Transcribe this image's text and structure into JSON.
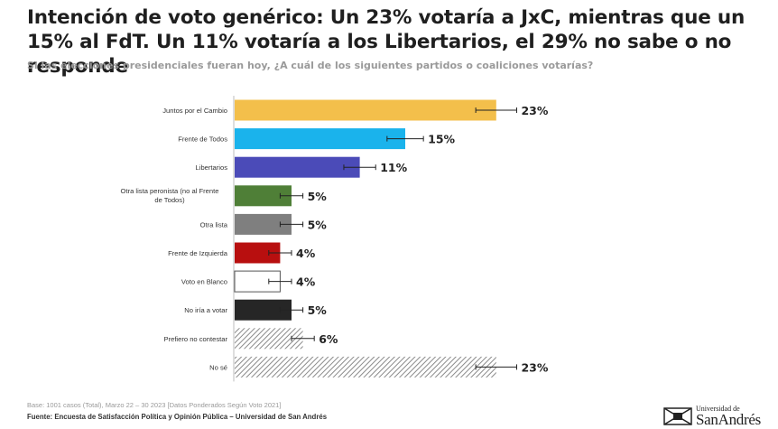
{
  "title": "Intención de voto genérico: Un 23% votaría a JxC, mientras que un 15% al FdT. Un 11% votaría a los Libertarios, el 29% no sabe o no responde",
  "subtitle": "Si las elecciones presidenciales fueran hoy, ¿A cuál de los siguientes partidos o coaliciones votarías?",
  "footnote": "Base: 1001 casos (Total), Marzo 22 – 30 2023 [Datos Ponderados Según Voto 2021]",
  "source": "Fuente: Encuesta de Satisfacción Política y Opinión Pública – Universidad de San Andrés",
  "logo": {
    "small_text": "Universidad de",
    "big_text": "SanAndrés"
  },
  "chart_data": {
    "type": "bar",
    "orientation": "horizontal",
    "categories": [
      "Juntos por el Cambio",
      "Frente de Todos",
      "Libertarios",
      "Otra lista peronista (no al Frente de Todos)",
      "Otra lista",
      "Frente de Izquierda",
      "Voto en Blanco",
      "No iría a votar",
      "Prefiero no contestar",
      "No sé"
    ],
    "values": [
      23,
      15,
      11,
      5,
      5,
      4,
      4,
      5,
      6,
      23
    ],
    "value_labels": [
      "23%",
      "15%",
      "11%",
      "5%",
      "5%",
      "4%",
      "4%",
      "5%",
      "6%",
      "23%"
    ],
    "error_margin": [
      1.8,
      1.6,
      1.4,
      1.0,
      1.0,
      1.0,
      1.0,
      1.0,
      1.0,
      1.8
    ],
    "colors": [
      "#f3bf4b",
      "#1ab3ec",
      "#4b4bb8",
      "#4f7f37",
      "#7f7f7f",
      "#b80f0f",
      "#ffffff",
      "#262626",
      "hatch",
      "hatch"
    ],
    "xlim": [
      0,
      30
    ],
    "error_bars": true,
    "legend": "none"
  }
}
